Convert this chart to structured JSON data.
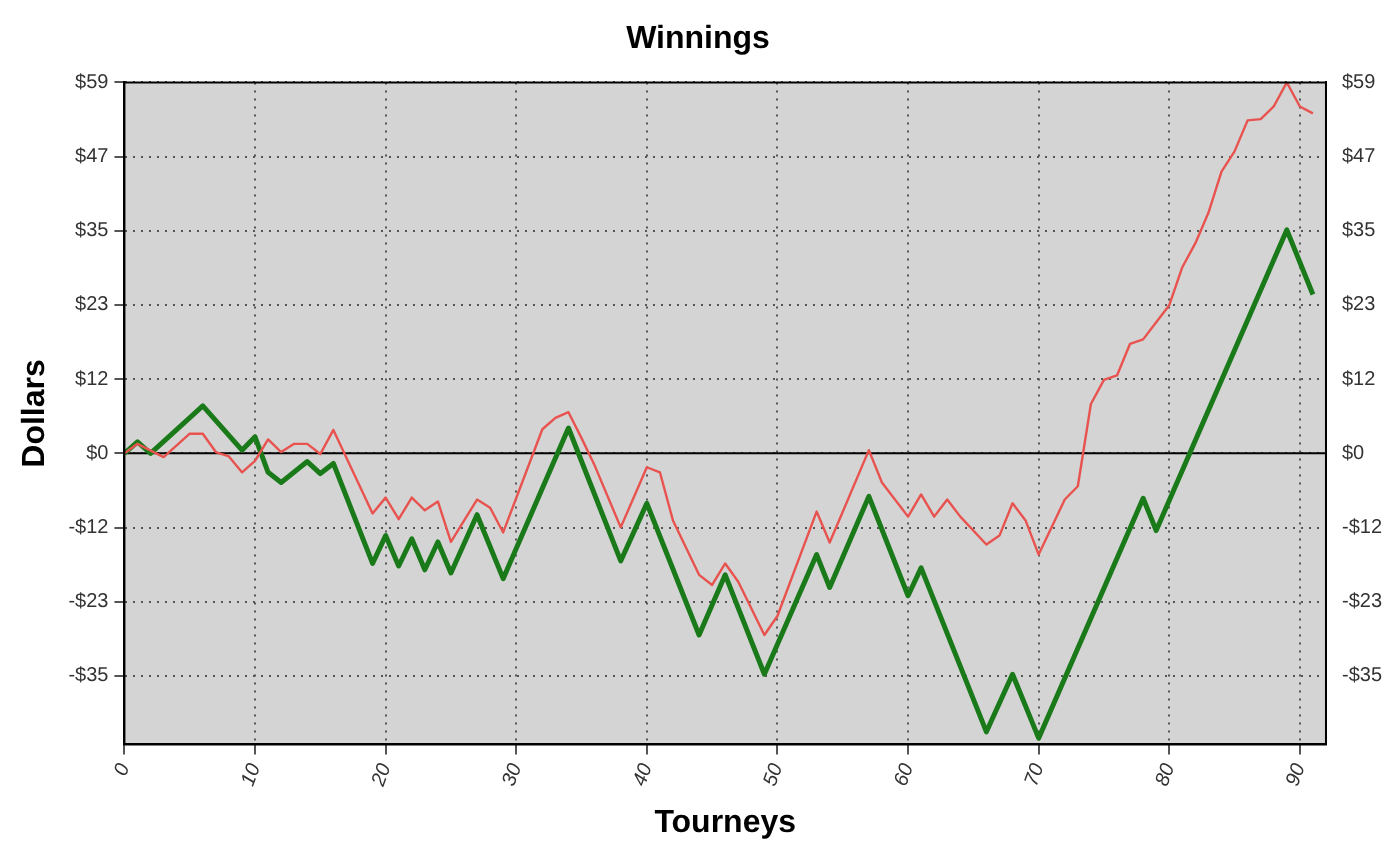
{
  "chart_data": {
    "type": "line",
    "title": "Winnings",
    "xlabel": "Tourneys",
    "ylabel": "Dollars",
    "series": [
      {
        "color": "#e8534f",
        "x": [
          0,
          1,
          3,
          5,
          6,
          7,
          8,
          9,
          10,
          11,
          12,
          13,
          14,
          15,
          16,
          19,
          20,
          21,
          22,
          23,
          24,
          25,
          27,
          28,
          29,
          32,
          33,
          34,
          35,
          36,
          38,
          40,
          41,
          42,
          44,
          45,
          46,
          47,
          49,
          50,
          53,
          54,
          57,
          58,
          60,
          61,
          62,
          63,
          64,
          66,
          67,
          68,
          69,
          70,
          72,
          73,
          74,
          75,
          76,
          77,
          78,
          79,
          80,
          81,
          82,
          83,
          84,
          85,
          86,
          87,
          88,
          89,
          90,
          91
        ],
        "values": [
          0,
          1.5,
          -0.6,
          3.1,
          3.1,
          0.2,
          -0.5,
          -3,
          -1.2,
          2.2,
          0.2,
          1.5,
          1.5,
          -0.1,
          3.7,
          -9.5,
          -7,
          -10.4,
          -7,
          -9,
          -7.6,
          -14,
          -7.3,
          -8.6,
          -12.5,
          3.8,
          5.6,
          6.5,
          2.4,
          -1.9,
          -11.7,
          -2.2,
          -3,
          -10.6,
          -19.2,
          -20.8,
          -17.4,
          -20.3,
          -28.7,
          -25.7,
          -9.2,
          -14.1,
          0.5,
          -4.6,
          -10,
          -6.5,
          -10,
          -7.3,
          -10,
          -14.4,
          -13,
          -7.9,
          -10.6,
          -16,
          -7.3,
          -5.2,
          7.8,
          11.6,
          12.3,
          17.3,
          18,
          20.7,
          23.4,
          29.4,
          33.2,
          38,
          44.5,
          47.7,
          52.6,
          52.8,
          54.8,
          58.6,
          54.8,
          53.7
        ]
      },
      {
        "color": "#1a7a1a",
        "x": [
          0,
          1,
          2,
          6,
          9,
          10,
          11,
          12,
          14,
          15,
          16,
          19,
          20,
          21,
          22,
          23,
          24,
          25,
          27,
          29,
          34,
          38,
          40,
          44,
          46,
          49,
          53,
          54,
          57,
          60,
          61,
          66,
          68,
          70,
          78,
          79,
          89,
          91
        ],
        "values": [
          0,
          1.8,
          0,
          7.5,
          0.5,
          2.6,
          -3,
          -4.6,
          -1.3,
          -3.2,
          -1.6,
          -17.4,
          -13,
          -17.8,
          -13.5,
          -18.4,
          -14,
          -18.9,
          -9.7,
          -19.8,
          4,
          -17,
          -7.9,
          -28.7,
          -19.2,
          -34.9,
          -16,
          -21.2,
          -6.8,
          -22.5,
          -18.1,
          -44,
          -34.9,
          -45,
          -7.1,
          -12.2,
          35.3,
          25.1
        ]
      }
    ],
    "xlim": [
      0,
      92
    ],
    "xticks": [
      0,
      10,
      20,
      30,
      40,
      50,
      60,
      70,
      80,
      90
    ],
    "ylim": [
      -46,
      58.6
    ],
    "yticks": [
      {
        "value": 58.6,
        "label": "$59"
      },
      {
        "value": 46.88,
        "label": "$47"
      },
      {
        "value": 35.16,
        "label": "$35"
      },
      {
        "value": 23.44,
        "label": "$23"
      },
      {
        "value": 11.72,
        "label": "$12"
      },
      {
        "value": 0,
        "label": "$0"
      },
      {
        "value": -11.72,
        "label": "-$12"
      },
      {
        "value": -23.44,
        "label": "-$23"
      },
      {
        "value": -35.16,
        "label": "-$35"
      }
    ],
    "y2lim": [
      -46,
      58.6
    ],
    "y2ticks": [
      {
        "value": 58.6,
        "label": "$59"
      },
      {
        "value": 46.88,
        "label": "$47"
      },
      {
        "value": 35.16,
        "label": "$35"
      },
      {
        "value": 23.44,
        "label": "$23"
      },
      {
        "value": 11.72,
        "label": "$12"
      },
      {
        "value": 0,
        "label": "$0"
      },
      {
        "value": -11.72,
        "label": "-$12"
      },
      {
        "value": -23.44,
        "label": "-$23"
      },
      {
        "value": -35.16,
        "label": "-$35"
      }
    ],
    "ref_lines": [
      {
        "axis": "y",
        "value": 0,
        "color": "#000000"
      }
    ],
    "grid": true,
    "legend": false,
    "marker": "none",
    "line_style": "solid"
  }
}
